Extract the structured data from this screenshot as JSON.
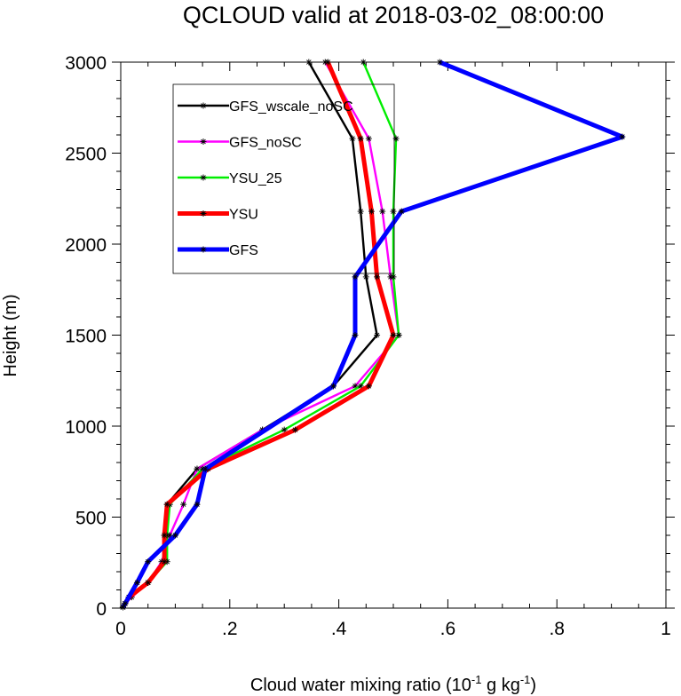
{
  "chart_data": {
    "type": "line",
    "title": "QCLOUD valid at 2018-03-02_08:00:00",
    "xlabel": {
      "prefix": "Cloud water mixing ratio (10",
      "exp1": "-1",
      "mid": " g kg",
      "exp2": "-1",
      "suffix": ")"
    },
    "ylabel": "Height (m)",
    "xlim": [
      0,
      1
    ],
    "ylim": [
      0,
      3000
    ],
    "xticks": [
      0,
      0.2,
      0.4,
      0.6,
      0.8,
      1
    ],
    "xtick_labels": [
      "0",
      ".2",
      ".4",
      ".6",
      ".8",
      "1"
    ],
    "yticks": [
      0,
      500,
      1000,
      1500,
      2000,
      2500,
      3000
    ],
    "ytick_labels": [
      "0",
      "500",
      "1000",
      "1500",
      "2000",
      "2500",
      "3000"
    ],
    "legend_position": "top-left",
    "marker": "asterisk",
    "series": [
      {
        "name": "GFS_wscale_noSC",
        "color": "#000000",
        "width": "thin",
        "points": [
          [
            0.004,
            5
          ],
          [
            0.008,
            25
          ],
          [
            0.015,
            60
          ],
          [
            0.05,
            140
          ],
          [
            0.08,
            255
          ],
          [
            0.08,
            400
          ],
          [
            0.085,
            570
          ],
          [
            0.14,
            765
          ],
          [
            0.26,
            980
          ],
          [
            0.39,
            1220
          ],
          [
            0.47,
            1500
          ],
          [
            0.45,
            1820
          ],
          [
            0.44,
            2180
          ],
          [
            0.425,
            2580
          ],
          [
            0.345,
            3000
          ]
        ]
      },
      {
        "name": "GFS_noSC",
        "color": "#ff00ff",
        "width": "thin",
        "points": [
          [
            0.004,
            5
          ],
          [
            0.008,
            25
          ],
          [
            0.02,
            60
          ],
          [
            0.05,
            140
          ],
          [
            0.075,
            255
          ],
          [
            0.09,
            400
          ],
          [
            0.115,
            570
          ],
          [
            0.14,
            765
          ],
          [
            0.26,
            980
          ],
          [
            0.43,
            1220
          ],
          [
            0.51,
            1500
          ],
          [
            0.495,
            1820
          ],
          [
            0.48,
            2180
          ],
          [
            0.455,
            2580
          ],
          [
            0.375,
            3000
          ]
        ]
      },
      {
        "name": "YSU_25",
        "color": "#00ee00",
        "width": "thin",
        "points": [
          [
            0.004,
            5
          ],
          [
            0.008,
            25
          ],
          [
            0.015,
            60
          ],
          [
            0.05,
            140
          ],
          [
            0.085,
            255
          ],
          [
            0.085,
            400
          ],
          [
            0.09,
            570
          ],
          [
            0.15,
            765
          ],
          [
            0.3,
            980
          ],
          [
            0.44,
            1220
          ],
          [
            0.51,
            1500
          ],
          [
            0.5,
            1820
          ],
          [
            0.5,
            2180
          ],
          [
            0.505,
            2580
          ],
          [
            0.445,
            3000
          ]
        ]
      },
      {
        "name": "YSU",
        "color": "#ff0000",
        "width": "thick",
        "points": [
          [
            0.004,
            5
          ],
          [
            0.008,
            25
          ],
          [
            0.015,
            60
          ],
          [
            0.05,
            140
          ],
          [
            0.08,
            255
          ],
          [
            0.08,
            400
          ],
          [
            0.085,
            570
          ],
          [
            0.16,
            765
          ],
          [
            0.32,
            980
          ],
          [
            0.455,
            1220
          ],
          [
            0.5,
            1500
          ],
          [
            0.47,
            1820
          ],
          [
            0.46,
            2180
          ],
          [
            0.44,
            2580
          ],
          [
            0.38,
            3000
          ]
        ]
      },
      {
        "name": "GFS",
        "color": "#0000ff",
        "width": "thick",
        "points": [
          [
            0.004,
            5
          ],
          [
            0.008,
            25
          ],
          [
            0.03,
            140
          ],
          [
            0.05,
            255
          ],
          [
            0.1,
            400
          ],
          [
            0.14,
            570
          ],
          [
            0.155,
            765
          ],
          [
            0.39,
            1220
          ],
          [
            0.43,
            1500
          ],
          [
            0.43,
            1820
          ],
          [
            0.515,
            2180
          ],
          [
            0.92,
            2590
          ],
          [
            0.585,
            3000
          ]
        ]
      }
    ]
  }
}
